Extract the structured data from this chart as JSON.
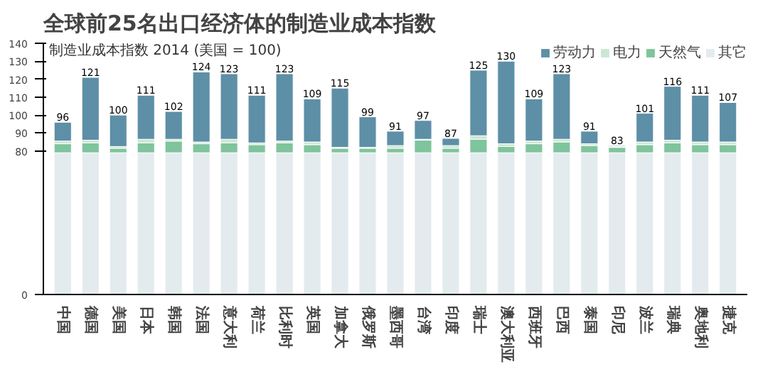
{
  "chart_data": {
    "type": "bar",
    "stacked": true,
    "title": "全球前25名出口经济体的制造业成本指数",
    "subtitle": "制造业成本指数 2014 (美国 = 100)",
    "categories": [
      "中国",
      "德国",
      "美国",
      "日本",
      "韩国",
      "法国",
      "意大利",
      "荷兰",
      "比利时",
      "英国",
      "加拿大",
      "俄罗斯",
      "墨西哥",
      "台湾",
      "印度",
      "瑞士",
      "澳大利亚",
      "西班牙",
      "巴西",
      "泰国",
      "印尼",
      "波兰",
      "瑞典",
      "奥地利",
      "捷克"
    ],
    "series": [
      {
        "name": "其它",
        "color": "#e4ebee",
        "values": [
          79,
          79,
          79,
          79,
          79,
          79,
          79,
          79,
          79,
          79,
          79,
          79,
          79,
          79,
          79,
          79,
          79,
          79,
          79,
          79,
          79,
          79,
          79,
          79,
          79
        ]
      },
      {
        "name": "天然气",
        "color": "#7fc49c",
        "values": [
          5,
          5.5,
          2.5,
          5.5,
          6.5,
          5,
          5.5,
          4.5,
          5.5,
          4.5,
          2.5,
          2.5,
          2.5,
          7,
          2.5,
          7.5,
          3.5,
          5,
          6,
          4,
          3,
          4.5,
          5.5,
          4.5,
          4.5
        ]
      },
      {
        "name": "电力",
        "color": "#cde6d3",
        "values": [
          1.5,
          1.5,
          1,
          2,
          1,
          1,
          2,
          1,
          1,
          1.5,
          0.5,
          0.5,
          1.5,
          0.5,
          1.5,
          2,
          1.5,
          1.5,
          1.5,
          1,
          0.5,
          1.5,
          1.5,
          1.5,
          1.5
        ]
      },
      {
        "name": "劳动力",
        "color": "#5d8fa7",
        "values": [
          10.5,
          35,
          17.5,
          24.5,
          15.5,
          39,
          36.5,
          26.5,
          37.5,
          24,
          33,
          17,
          8,
          10.5,
          4,
          36.5,
          46,
          23.5,
          36.5,
          7,
          0.5,
          16,
          30,
          26,
          22
        ]
      }
    ],
    "totals": [
      "96",
      "121",
      "100",
      "111",
      "102",
      "124",
      "123",
      "111",
      "123",
      "109",
      "115",
      "99",
      "91",
      "97",
      "87",
      "125",
      "130",
      "109",
      "123",
      "91",
      "83",
      "101",
      "116",
      "111",
      "107"
    ],
    "ylim": [
      0,
      140
    ],
    "yticks": [
      0,
      80,
      90,
      100,
      110,
      120,
      130,
      140
    ],
    "legend": "top right"
  }
}
